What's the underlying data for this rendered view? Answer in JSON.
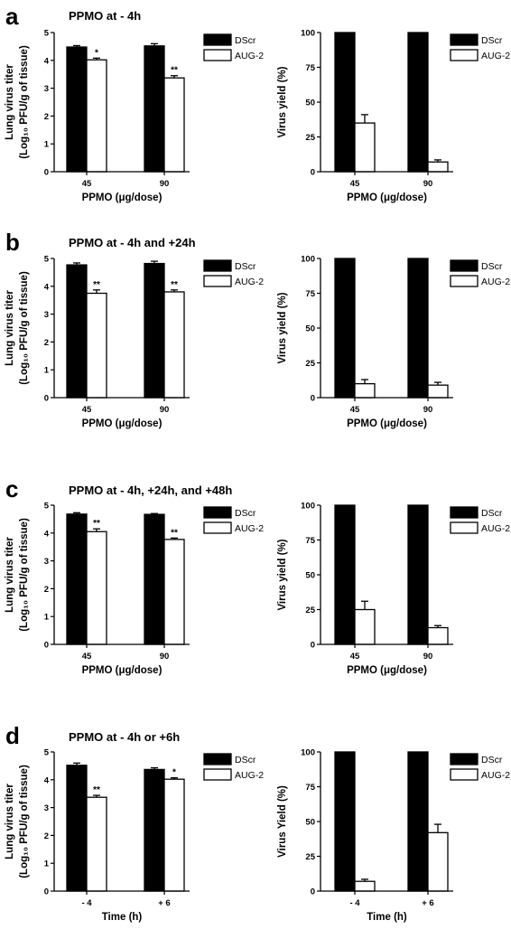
{
  "legend_labels": [
    "DScr",
    "AUG-2"
  ],
  "colors": {
    "DScr": "#000000",
    "AUG-2": "#ffffff",
    "outline": "#000000"
  },
  "chart_data": [
    {
      "panel": "a",
      "title": "PPMO at - 4h",
      "type": "bar",
      "categories": [
        "45",
        "90"
      ],
      "xlabel": "PPMO (μg/dose)",
      "ylabel_line1": "Lung virus titer",
      "ylabel_line2": "(Log₁₀ PFU/g of tissue)",
      "ylim": [
        0,
        5
      ],
      "yticks": [
        "0",
        "1",
        "2",
        "3",
        "4",
        "5"
      ],
      "series": [
        {
          "name": "DScr",
          "values": [
            4.48,
            4.52
          ],
          "errors": [
            0.05,
            0.08
          ],
          "markers": [
            "",
            ""
          ]
        },
        {
          "name": "AUG-2",
          "values": [
            4.02,
            3.37
          ],
          "errors": [
            0.06,
            0.08
          ],
          "markers": [
            "*",
            "**"
          ]
        }
      ]
    },
    {
      "panel": "a",
      "title": "",
      "type": "bar",
      "categories": [
        "45",
        "90"
      ],
      "xlabel": "PPMO (μg/dose)",
      "ylabel_line1": "Virus yield (%)",
      "ylabel_line2": "",
      "ylim": [
        0,
        100
      ],
      "yticks": [
        "0",
        "25",
        "50",
        "75",
        "100"
      ],
      "series": [
        {
          "name": "DScr",
          "values": [
            100,
            100
          ],
          "errors": [
            0,
            0
          ],
          "markers": [
            "",
            ""
          ]
        },
        {
          "name": "AUG-2",
          "values": [
            35,
            7
          ],
          "errors": [
            6,
            1.5
          ],
          "markers": [
            "",
            ""
          ]
        }
      ]
    },
    {
      "panel": "b",
      "title": "PPMO at - 4h and +24h",
      "type": "bar",
      "categories": [
        "45",
        "90"
      ],
      "xlabel": "PPMO (μg/dose)",
      "ylabel_line1": "Lung virus titer",
      "ylabel_line2": "(Log₁₀ PFU/g of tissue)",
      "ylim": [
        0,
        5
      ],
      "yticks": [
        "0",
        "1",
        "2",
        "3",
        "4",
        "5"
      ],
      "series": [
        {
          "name": "DScr",
          "values": [
            4.77,
            4.82
          ],
          "errors": [
            0.07,
            0.08
          ],
          "markers": [
            "",
            ""
          ]
        },
        {
          "name": "AUG-2",
          "values": [
            3.75,
            3.8
          ],
          "errors": [
            0.12,
            0.07
          ],
          "markers": [
            "**",
            "**"
          ]
        }
      ]
    },
    {
      "panel": "b",
      "title": "",
      "type": "bar",
      "categories": [
        "45",
        "90"
      ],
      "xlabel": "PPMO (μg/dose)",
      "ylabel_line1": "Virus yield (%)",
      "ylabel_line2": "",
      "ylim": [
        0,
        100
      ],
      "yticks": [
        "0",
        "25",
        "50",
        "75",
        "100"
      ],
      "series": [
        {
          "name": "DScr",
          "values": [
            100,
            100
          ],
          "errors": [
            0,
            0
          ],
          "markers": [
            "",
            ""
          ]
        },
        {
          "name": "AUG-2",
          "values": [
            10,
            9
          ],
          "errors": [
            3,
            2
          ],
          "markers": [
            "",
            ""
          ]
        }
      ]
    },
    {
      "panel": "c",
      "title": "PPMO at - 4h, +24h, and +48h",
      "type": "bar",
      "categories": [
        "45",
        "90"
      ],
      "xlabel": "PPMO (μg/dose)",
      "ylabel_line1": "Lung virus titer",
      "ylabel_line2": "(Log₁₀ PFU/g of tissue)",
      "ylim": [
        0,
        5
      ],
      "yticks": [
        "0",
        "1",
        "2",
        "3",
        "4",
        "5"
      ],
      "series": [
        {
          "name": "DScr",
          "values": [
            4.68,
            4.67
          ],
          "errors": [
            0.05,
            0.03
          ],
          "markers": [
            "",
            ""
          ]
        },
        {
          "name": "AUG-2",
          "values": [
            4.05,
            3.77
          ],
          "errors": [
            0.1,
            0.05
          ],
          "markers": [
            "**",
            "**"
          ]
        }
      ]
    },
    {
      "panel": "c",
      "title": "",
      "type": "bar",
      "categories": [
        "45",
        "90"
      ],
      "xlabel": "PPMO (μg/dose)",
      "ylabel_line1": "Virus yield (%)",
      "ylabel_line2": "",
      "ylim": [
        0,
        100
      ],
      "yticks": [
        "0",
        "25",
        "50",
        "75",
        "100"
      ],
      "series": [
        {
          "name": "DScr",
          "values": [
            100,
            100
          ],
          "errors": [
            0,
            0
          ],
          "markers": [
            "",
            ""
          ]
        },
        {
          "name": "AUG-2",
          "values": [
            25,
            12
          ],
          "errors": [
            6,
            1.5
          ],
          "markers": [
            "",
            ""
          ]
        }
      ]
    },
    {
      "panel": "d",
      "title": "PPMO at - 4h or +6h",
      "type": "bar",
      "categories": [
        "- 4",
        "+ 6"
      ],
      "xlabel": "Time (h)",
      "ylabel_line1": "Lung virus titer",
      "ylabel_line2": "(Log₁₀ PFU/g of tissue)",
      "ylim": [
        0,
        5
      ],
      "yticks": [
        "0",
        "1",
        "2",
        "3",
        "4",
        "5"
      ],
      "series": [
        {
          "name": "DScr",
          "values": [
            4.52,
            4.37
          ],
          "errors": [
            0.08,
            0.06
          ],
          "markers": [
            "",
            ""
          ]
        },
        {
          "name": "AUG-2",
          "values": [
            3.37,
            4.02
          ],
          "errors": [
            0.07,
            0.05
          ],
          "markers": [
            "**",
            "*"
          ]
        }
      ]
    },
    {
      "panel": "d",
      "title": "",
      "type": "bar",
      "categories": [
        "- 4",
        "+ 6"
      ],
      "xlabel": "Time (h)",
      "ylabel_line1": "Virus Yield (%)",
      "ylabel_line2": "",
      "ylim": [
        0,
        100
      ],
      "yticks": [
        "0",
        "25",
        "50",
        "75",
        "100"
      ],
      "series": [
        {
          "name": "DScr",
          "values": [
            100,
            100
          ],
          "errors": [
            0,
            0
          ],
          "markers": [
            "",
            ""
          ]
        },
        {
          "name": "AUG-2",
          "values": [
            7,
            42
          ],
          "errors": [
            1.5,
            6
          ],
          "markers": [
            "",
            ""
          ]
        }
      ]
    }
  ]
}
